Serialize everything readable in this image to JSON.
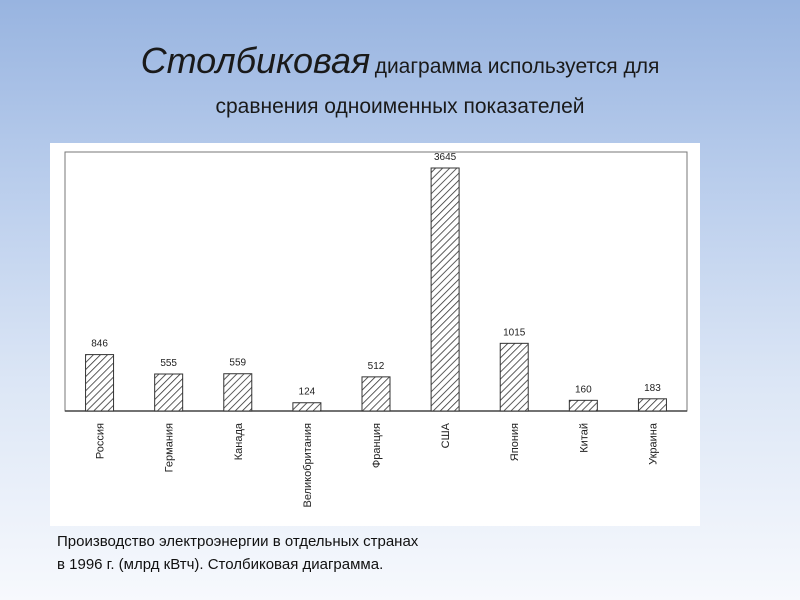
{
  "slide": {
    "title_italic": "Столбиковая",
    "title_rest_1": "диаграмма используется для",
    "title_rest_2": "сравнения одноименных показателей",
    "caption_line1": "Производство электроэнергии в отдельных странах",
    "caption_line2": "в 1996 г. (млрд кВтч). Столбиковая диаграмма."
  },
  "chart_data": {
    "type": "bar",
    "categories": [
      "Россия",
      "Германия",
      "Канада",
      "Великобритания",
      "Франция",
      "США",
      "Япония",
      "Китай",
      "Украина"
    ],
    "values": [
      846,
      555,
      559,
      124,
      512,
      3645,
      1015,
      160,
      183
    ],
    "value_labels": [
      "846",
      "555",
      "559",
      "124",
      "512",
      "3645",
      "1015",
      "160",
      "183"
    ],
    "bar_fill": "hatched",
    "grid": false,
    "legend": "none",
    "ylim": [
      0,
      3700
    ]
  }
}
